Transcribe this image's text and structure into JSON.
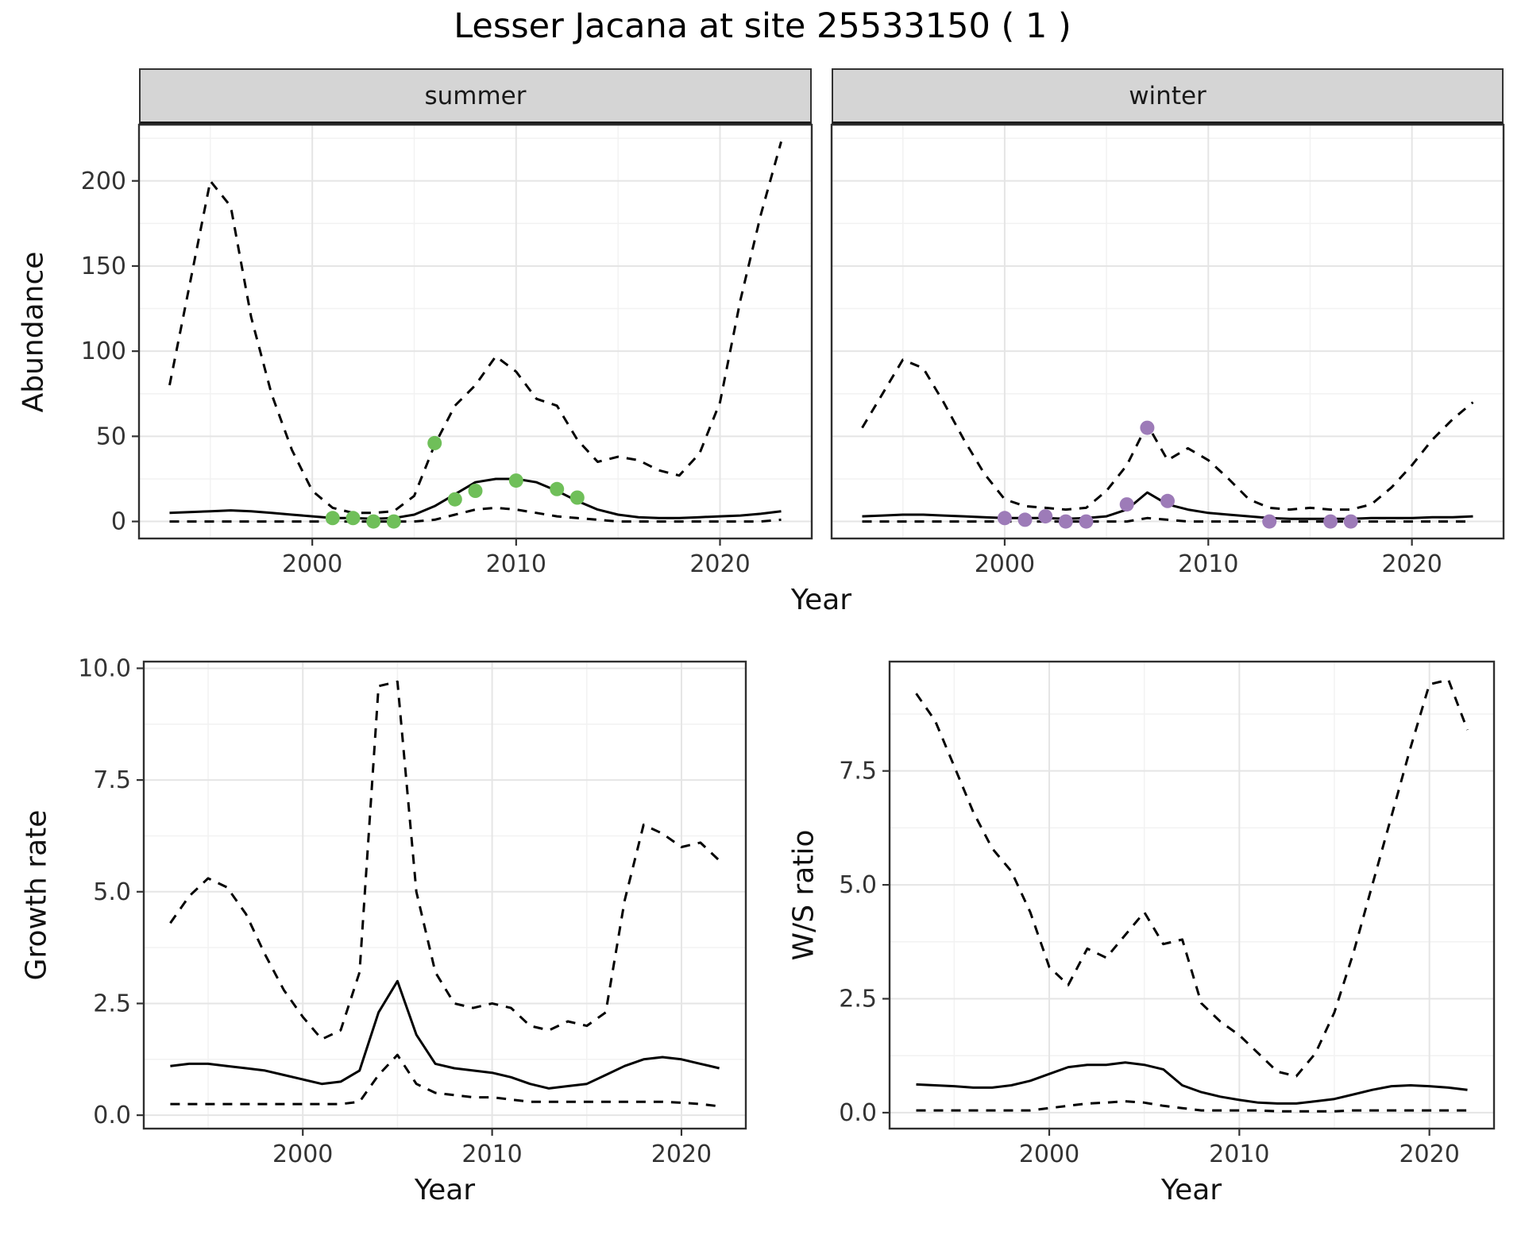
{
  "title": "Lesser Jacana at site 25533150 ( 1 )",
  "facets": [
    {
      "label": "summer"
    },
    {
      "label": "winter"
    }
  ],
  "axis_labels": {
    "x": "Year",
    "abundance": "Abundance",
    "growth": "Growth rate",
    "ws": "W/S ratio"
  },
  "colors": {
    "line": "#000000",
    "summer_points": "#6fbf59",
    "winter_points": "#9d7bb8",
    "strip_background": "#d5d5d5",
    "panel_border": "#2f2f2f",
    "grid_major": "#e5e5e5",
    "grid_minor": "#f2f2f2",
    "tick_mark": "#333333",
    "tick_label": "#333333"
  },
  "chart_data": [
    {
      "id": "abundance-summer",
      "type": "line",
      "facet": "summer",
      "xlabel": "Year",
      "ylabel": "Abundance",
      "xlim": [
        1991.5,
        2024.5
      ],
      "ylim": [
        -10,
        233
      ],
      "xticks": [
        2000,
        2010,
        2020
      ],
      "xticklabels": [
        "2000",
        "2010",
        "2020"
      ],
      "yticks": [
        0,
        50,
        100,
        150,
        200
      ],
      "yticklabels": [
        "0",
        "50",
        "100",
        "150",
        "200"
      ],
      "xminor": [
        1995,
        2005,
        2015
      ],
      "yminor": [
        25,
        75,
        125,
        175,
        225
      ],
      "show_yaxis": true,
      "x": [
        1993,
        1994,
        1995,
        1996,
        1997,
        1998,
        1999,
        2000,
        2001,
        2002,
        2003,
        2004,
        2005,
        2006,
        2007,
        2008,
        2009,
        2010,
        2011,
        2012,
        2013,
        2014,
        2015,
        2016,
        2017,
        2018,
        2019,
        2020,
        2021,
        2022,
        2023
      ],
      "series": [
        {
          "name": "upper_ci",
          "style": "dashed",
          "values": [
            80,
            140,
            200,
            185,
            120,
            75,
            42,
            18,
            8,
            5,
            5,
            6,
            15,
            45,
            68,
            80,
            97,
            88,
            72,
            68,
            48,
            35,
            38,
            36,
            30,
            27,
            40,
            70,
            130,
            180,
            223
          ]
        },
        {
          "name": "mean",
          "style": "solid",
          "values": [
            5,
            5.5,
            6,
            6.5,
            6,
            5,
            4,
            3,
            2,
            2,
            1.5,
            2,
            4,
            9,
            16,
            23,
            25,
            25,
            23,
            18,
            12,
            7,
            4,
            2.5,
            2,
            2,
            2.5,
            3,
            3.5,
            4.5,
            6
          ]
        },
        {
          "name": "lower_ci",
          "style": "dashed",
          "values": [
            0,
            0,
            0,
            0,
            0,
            0,
            0,
            0,
            0,
            0,
            0,
            0,
            0,
            1,
            4,
            7,
            8,
            7,
            5,
            3,
            2,
            1,
            0,
            0,
            0,
            0,
            0,
            0,
            0,
            0,
            1
          ]
        }
      ],
      "points": {
        "name": "observations",
        "color": "#6fbf59",
        "x": [
          2001,
          2002,
          2003,
          2004,
          2006,
          2007,
          2008,
          2010,
          2012,
          2013
        ],
        "y": [
          2,
          2,
          0,
          0,
          46,
          13,
          18,
          24,
          19,
          14
        ]
      }
    },
    {
      "id": "abundance-winter",
      "type": "line",
      "facet": "winter",
      "xlabel": "Year",
      "ylabel": "Abundance",
      "xlim": [
        1991.5,
        2024.5
      ],
      "ylim": [
        -10,
        233
      ],
      "xticks": [
        2000,
        2010,
        2020
      ],
      "xticklabels": [
        "2000",
        "2010",
        "2020"
      ],
      "yticks": [
        0,
        50,
        100,
        150,
        200
      ],
      "yticklabels": [
        "0",
        "50",
        "100",
        "150",
        "200"
      ],
      "xminor": [
        1995,
        2005,
        2015
      ],
      "yminor": [
        25,
        75,
        125,
        175,
        225
      ],
      "show_yaxis": false,
      "x": [
        1993,
        1994,
        1995,
        1996,
        1997,
        1998,
        1999,
        2000,
        2001,
        2002,
        2003,
        2004,
        2005,
        2006,
        2007,
        2008,
        2009,
        2010,
        2011,
        2012,
        2013,
        2014,
        2015,
        2016,
        2017,
        2018,
        2019,
        2020,
        2021,
        2022,
        2023
      ],
      "series": [
        {
          "name": "upper_ci",
          "style": "dashed",
          "values": [
            55,
            75,
            95,
            90,
            70,
            48,
            28,
            13,
            9,
            8,
            7,
            8,
            18,
            33,
            57,
            36,
            43,
            36,
            25,
            13,
            8,
            7,
            8,
            7,
            7,
            10,
            20,
            33,
            48,
            60,
            70
          ]
        },
        {
          "name": "mean",
          "style": "solid",
          "values": [
            3,
            3.5,
            4,
            4,
            3.5,
            3,
            2.5,
            2,
            2,
            2,
            1.5,
            2,
            3,
            7,
            17,
            10,
            7,
            5,
            4,
            3,
            2,
            1.5,
            1.5,
            1.5,
            1.5,
            2,
            2,
            2,
            2.5,
            2.5,
            3
          ]
        },
        {
          "name": "lower_ci",
          "style": "dashed",
          "values": [
            0,
            0,
            0,
            0,
            0,
            0,
            0,
            0,
            0,
            0,
            0,
            0,
            0,
            0,
            2,
            1,
            0,
            0,
            0,
            0,
            0,
            0,
            0,
            0,
            0,
            0,
            0,
            0,
            0,
            0,
            0
          ]
        }
      ],
      "points": {
        "name": "observations",
        "color": "#9d7bb8",
        "x": [
          2000,
          2001,
          2002,
          2003,
          2004,
          2006,
          2007,
          2008,
          2013,
          2016,
          2017
        ],
        "y": [
          2,
          1,
          3,
          0,
          0,
          10,
          55,
          12,
          0,
          0,
          0
        ]
      }
    },
    {
      "id": "growth-rate",
      "type": "line",
      "facet": "",
      "xlabel": "Year",
      "ylabel": "Growth rate",
      "xlim": [
        1991.6,
        2023.4
      ],
      "ylim": [
        -0.3,
        10.15
      ],
      "xticks": [
        2000,
        2010,
        2020
      ],
      "xticklabels": [
        "2000",
        "2010",
        "2020"
      ],
      "yticks": [
        0,
        2.5,
        5,
        7.5,
        10
      ],
      "yticklabels": [
        "0.0",
        "2.5",
        "5.0",
        "7.5",
        "10.0"
      ],
      "xminor": [
        1995,
        2005,
        2015
      ],
      "yminor": [
        1.25,
        3.75,
        6.25,
        8.75
      ],
      "show_yaxis": true,
      "x": [
        1993,
        1994,
        1995,
        1996,
        1997,
        1998,
        1999,
        2000,
        2001,
        2002,
        2003,
        2004,
        2005,
        2006,
        2007,
        2008,
        2009,
        2010,
        2011,
        2012,
        2013,
        2014,
        2015,
        2016,
        2017,
        2018,
        2019,
        2020,
        2021,
        2022
      ],
      "series": [
        {
          "name": "upper_ci",
          "style": "dashed",
          "values": [
            4.3,
            4.9,
            5.3,
            5.1,
            4.5,
            3.6,
            2.8,
            2.2,
            1.7,
            1.9,
            3.2,
            9.6,
            9.7,
            5.0,
            3.2,
            2.5,
            2.4,
            2.5,
            2.4,
            2.0,
            1.9,
            2.1,
            2.0,
            2.3,
            4.8,
            6.5,
            6.3,
            6.0,
            6.1,
            5.7
          ]
        },
        {
          "name": "mean",
          "style": "solid",
          "values": [
            1.1,
            1.15,
            1.15,
            1.1,
            1.05,
            1.0,
            0.9,
            0.8,
            0.7,
            0.75,
            1.0,
            2.3,
            3.0,
            1.8,
            1.15,
            1.05,
            1.0,
            0.95,
            0.85,
            0.7,
            0.6,
            0.65,
            0.7,
            0.9,
            1.1,
            1.25,
            1.3,
            1.25,
            1.15,
            1.05
          ]
        },
        {
          "name": "lower_ci",
          "style": "dashed",
          "values": [
            0.25,
            0.25,
            0.25,
            0.25,
            0.25,
            0.25,
            0.25,
            0.25,
            0.25,
            0.25,
            0.3,
            0.9,
            1.35,
            0.7,
            0.5,
            0.45,
            0.4,
            0.4,
            0.35,
            0.3,
            0.3,
            0.3,
            0.3,
            0.3,
            0.3,
            0.3,
            0.3,
            0.28,
            0.25,
            0.2
          ]
        }
      ],
      "points": null
    },
    {
      "id": "ws-ratio",
      "type": "line",
      "facet": "",
      "xlabel": "Year",
      "ylabel": "W/S ratio",
      "xlim": [
        1991.6,
        2023.4
      ],
      "ylim": [
        -0.35,
        9.9
      ],
      "xticks": [
        2000,
        2010,
        2020
      ],
      "xticklabels": [
        "2000",
        "2010",
        "2020"
      ],
      "yticks": [
        0,
        2.5,
        5,
        7.5
      ],
      "yticklabels": [
        "0.0",
        "2.5",
        "5.0",
        "7.5"
      ],
      "xminor": [
        1995,
        2005,
        2015
      ],
      "yminor": [
        1.25,
        3.75,
        6.25,
        8.75
      ],
      "show_yaxis": true,
      "x": [
        1993,
        1994,
        1995,
        1996,
        1997,
        1998,
        1999,
        2000,
        2001,
        2002,
        2003,
        2004,
        2005,
        2006,
        2007,
        2008,
        2009,
        2010,
        2011,
        2012,
        2013,
        2014,
        2015,
        2016,
        2017,
        2018,
        2019,
        2020,
        2021,
        2022
      ],
      "series": [
        {
          "name": "upper_ci",
          "style": "dashed",
          "values": [
            9.2,
            8.6,
            7.6,
            6.6,
            5.8,
            5.3,
            4.4,
            3.2,
            2.8,
            3.6,
            3.4,
            3.9,
            4.4,
            3.7,
            3.8,
            2.4,
            2.0,
            1.7,
            1.3,
            0.9,
            0.8,
            1.3,
            2.2,
            3.5,
            5.0,
            6.5,
            8.0,
            9.4,
            9.5,
            8.4
          ]
        },
        {
          "name": "mean",
          "style": "solid",
          "values": [
            0.62,
            0.6,
            0.58,
            0.55,
            0.55,
            0.6,
            0.7,
            0.85,
            1.0,
            1.05,
            1.05,
            1.1,
            1.05,
            0.95,
            0.6,
            0.45,
            0.35,
            0.28,
            0.22,
            0.2,
            0.2,
            0.25,
            0.3,
            0.4,
            0.5,
            0.58,
            0.6,
            0.58,
            0.55,
            0.5
          ]
        },
        {
          "name": "lower_ci",
          "style": "dashed",
          "values": [
            0.05,
            0.05,
            0.05,
            0.05,
            0.05,
            0.05,
            0.05,
            0.1,
            0.15,
            0.2,
            0.22,
            0.25,
            0.22,
            0.15,
            0.1,
            0.05,
            0.05,
            0.05,
            0.05,
            0.03,
            0.03,
            0.03,
            0.03,
            0.05,
            0.05,
            0.05,
            0.05,
            0.05,
            0.05,
            0.05
          ]
        }
      ],
      "points": null
    }
  ]
}
